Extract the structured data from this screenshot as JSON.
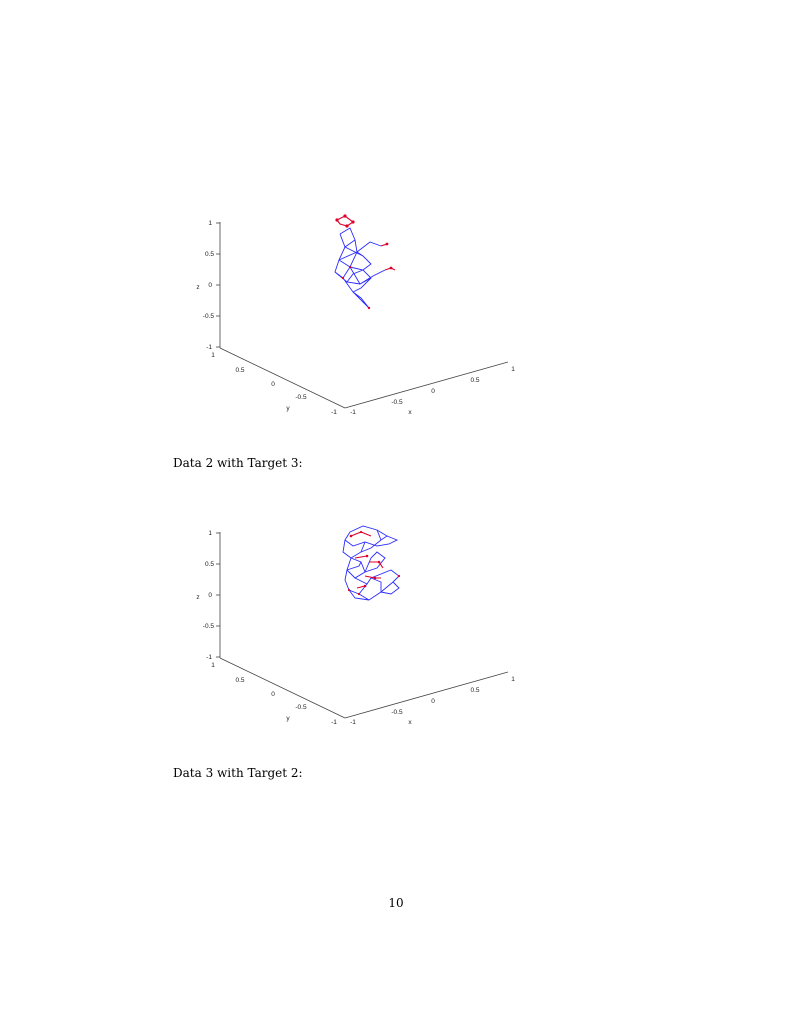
{
  "figures": [
    {
      "axes": {
        "z_ticks": [
          "1",
          "0.5",
          "0",
          "-0.5",
          "-1"
        ],
        "y_ticks": [
          "1",
          "0.5",
          "0",
          "-0.5",
          "-1"
        ],
        "x_ticks": [
          "-1",
          "-0.5",
          "0",
          "0.5",
          "1"
        ],
        "z_label": "z",
        "y_label": "y",
        "x_label": "x"
      }
    },
    {
      "axes": {
        "z_ticks": [
          "1",
          "0.5",
          "0",
          "-0.5",
          "-1"
        ],
        "y_ticks": [
          "1",
          "0.5",
          "0",
          "-0.5",
          "-1"
        ],
        "x_ticks": [
          "-1",
          "-0.5",
          "0",
          "0.5",
          "1"
        ],
        "z_label": "z",
        "y_label": "y",
        "x_label": "x"
      }
    }
  ],
  "captions": {
    "caption_1": "Data 2 with Target 3:",
    "caption_2": "Data 3 with Target 2:"
  },
  "page_number": "10",
  "colors": {
    "edge": "#2b2bff",
    "node": "#e0002a"
  }
}
